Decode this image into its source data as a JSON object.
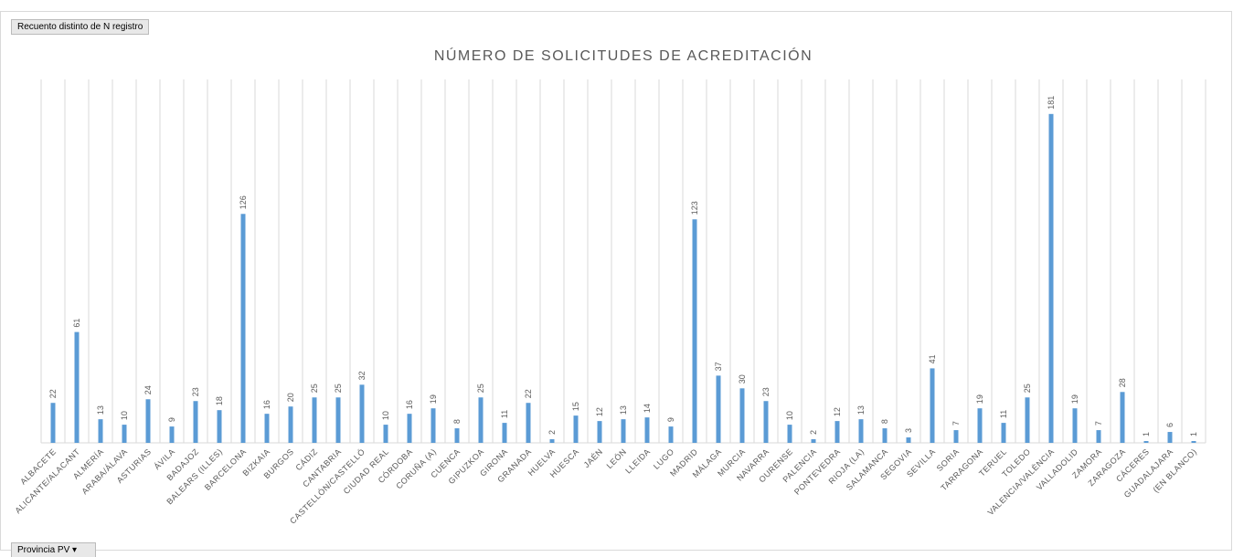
{
  "buttons": {
    "value_field": "Recuento distinto de N registro",
    "axis_field": "Provincia PV"
  },
  "chart_data": {
    "type": "bar",
    "title": "NÚMERO DE SOLICITUDES DE ACREDITACIÓN",
    "categories": [
      "ALBACETE",
      "ALICANTE/ALACANT",
      "ALMERÍA",
      "ARABA/ÁLAVA",
      "ASTURIAS",
      "ÁVILA",
      "BADAJOZ",
      "BALEARS (ILLES)",
      "BARCELONA",
      "BIZKAIA",
      "BURGOS",
      "CÁDIZ",
      "CANTABRIA",
      "CASTELLÓN/CASTELLÓ",
      "CIUDAD REAL",
      "CÓRDOBA",
      "CORUÑA (A)",
      "CUENCA",
      "GIPUZKOA",
      "GIRONA",
      "GRANADA",
      "HUELVA",
      "HUESCA",
      "JAÉN",
      "LEÓN",
      "LLEIDA",
      "LUGO",
      "MADRID",
      "MÁLAGA",
      "MURCIA",
      "NAVARRA",
      "OURENSE",
      "PALENCIA",
      "PONTEVEDRA",
      "RIOJA (LA)",
      "SALAMANCA",
      "SEGOVIA",
      "SEVILLA",
      "SORIA",
      "TARRAGONA",
      "TERUEL",
      "TOLEDO",
      "VALENCIA/VALÈNCIA",
      "VALLADOLID",
      "ZAMORA",
      "ZARAGOZA",
      "CÁCERES",
      "GUADALAJARA",
      "(EN BLANCO)"
    ],
    "values": [
      22,
      61,
      13,
      10,
      24,
      9,
      23,
      18,
      126,
      16,
      20,
      25,
      25,
      32,
      10,
      16,
      19,
      8,
      25,
      11,
      22,
      2,
      15,
      12,
      13,
      14,
      9,
      123,
      37,
      30,
      23,
      10,
      2,
      12,
      13,
      8,
      3,
      41,
      7,
      19,
      11,
      25,
      181,
      19,
      7,
      28,
      1,
      6,
      1
    ],
    "color": "#5b9bd5",
    "ylim": [
      0,
      200
    ]
  }
}
